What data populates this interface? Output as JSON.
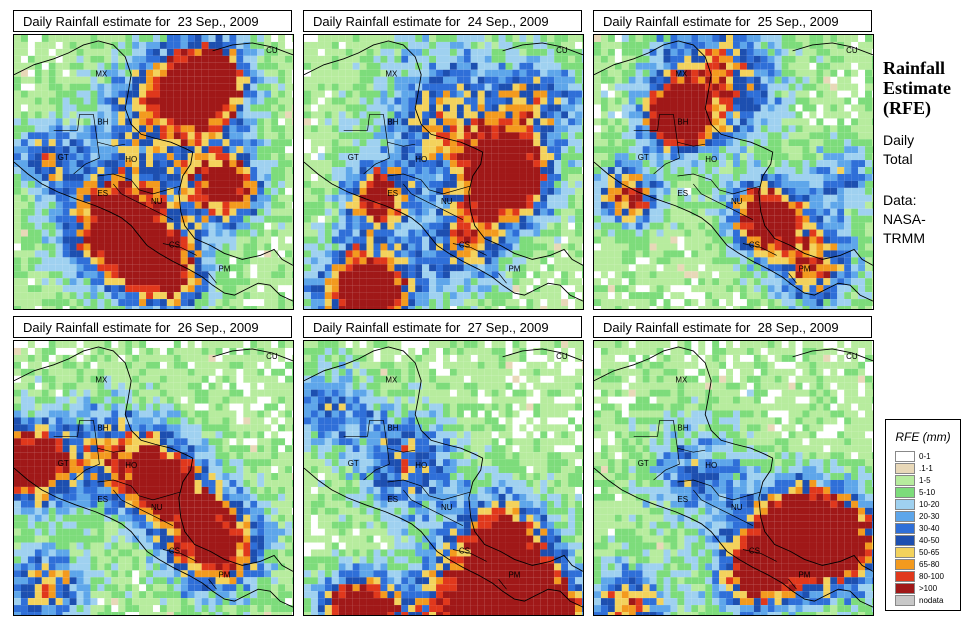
{
  "panels": [
    {
      "title": "Daily Rainfall estimate for  23 Sep., 2009",
      "day": 23,
      "seed": 7
    },
    {
      "title": "Daily Rainfall estimate for  24 Sep., 2009",
      "day": 24,
      "seed": 19
    },
    {
      "title": "Daily Rainfall estimate for  25 Sep., 2009",
      "day": 25,
      "seed": 31
    },
    {
      "title": "Daily Rainfall estimate for  26 Sep., 2009",
      "day": 26,
      "seed": 43
    },
    {
      "title": "Daily Rainfall estimate for  27 Sep., 2009",
      "day": 27,
      "seed": 59
    },
    {
      "title": "Daily Rainfall estimate for  28 Sep., 2009",
      "day": 28,
      "seed": 71
    }
  ],
  "country_labels": [
    "CU",
    "MX",
    "BH",
    "GT",
    "HO",
    "ES",
    "NU",
    "CS",
    "PM"
  ],
  "sidebar": {
    "title_line1": "Rainfall",
    "title_line2": "Estimate",
    "title_line3": "(RFE)",
    "line4": "Daily",
    "line5": "Total",
    "line6": "Data:",
    "line7": "NASA-",
    "line8": "TRMM"
  },
  "legend": {
    "title": "RFE (mm)",
    "items": [
      {
        "label": "0-1",
        "color": "#ffffff"
      },
      {
        "label": ".1-1",
        "color": "#e8d8b8"
      },
      {
        "label": "1-5",
        "color": "#b7ec9e"
      },
      {
        "label": "5-10",
        "color": "#7ddc7b"
      },
      {
        "label": "10-20",
        "color": "#9fd1f0"
      },
      {
        "label": "20-30",
        "color": "#5ea6ea"
      },
      {
        "label": "30-40",
        "color": "#2f6fd8"
      },
      {
        "label": "40-50",
        "color": "#1d4fb0"
      },
      {
        "label": "50-65",
        "color": "#f3d25c"
      },
      {
        "label": "65-80",
        "color": "#f39a1e"
      },
      {
        "label": "80-100",
        "color": "#e0381c"
      },
      {
        "label": ">100",
        "color": "#a01818"
      },
      {
        "label": "nodata",
        "color": "#c8c8c8"
      }
    ]
  }
}
